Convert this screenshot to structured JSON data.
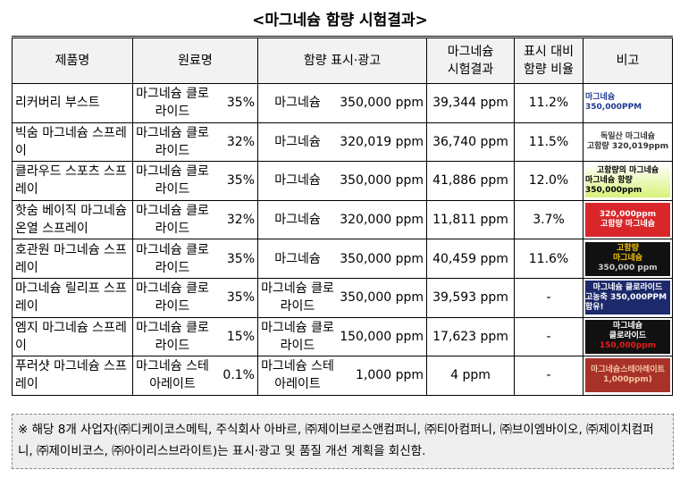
{
  "title": "<마그네슘 함량 시험결과>",
  "table": {
    "headers": [
      "제품명",
      "원료명",
      "함량 표시·광고",
      "마그네슘\n시험결과",
      "표시 대비\n함량 비율",
      "비고"
    ],
    "rows": [
      {
        "product": "리커버리 부스트",
        "ingredient": "마그네슘 클로라이드",
        "ingredient_pct": "35%",
        "claim_ingredient": "마그네슘",
        "claim_amount": "350,000 ppm",
        "test_result": "39,344 ppm",
        "ratio": "11.2%",
        "note": [
          "마그네슘 350,000PPM"
        ]
      },
      {
        "product": "빅숨 마그네슘 스프레이",
        "ingredient": "마그네슘 클로라이드",
        "ingredient_pct": "32%",
        "claim_ingredient": "마그네슘",
        "claim_amount": "320,019 ppm",
        "test_result": "36,740 ppm",
        "ratio": "11.5%",
        "note": [
          "독일산 마그네슘",
          "고함량 320,019ppm"
        ]
      },
      {
        "product": "클라우드 스포츠 스프레이",
        "ingredient": "마그네슘 클로라이드",
        "ingredient_pct": "35%",
        "claim_ingredient": "마그네슘",
        "claim_amount": "350,000 ppm",
        "test_result": "41,886 ppm",
        "ratio": "12.0%",
        "note": [
          "고함량의 마그네슘",
          "마그네슘 함량 350,000ppm"
        ]
      },
      {
        "product": "핫숨 베이직 마그네슘 온열 스프레이",
        "ingredient": "마그네슘 클로라이드",
        "ingredient_pct": "32%",
        "claim_ingredient": "마그네슘",
        "claim_amount": "320,000 ppm",
        "test_result": "11,811 ppm",
        "ratio": "3.7%",
        "note": [
          "320,000ppm",
          "고함량 마그네슘"
        ]
      },
      {
        "product": "호관원 마그네슘 스프레이",
        "ingredient": "마그네슘 클로라이드",
        "ingredient_pct": "35%",
        "claim_ingredient": "마그네슘",
        "claim_amount": "350,000 ppm",
        "test_result": "40,459 ppm",
        "ratio": "11.6%",
        "note": [
          "고함량",
          "마그네슘",
          "350,000 ppm"
        ]
      },
      {
        "product": "마그네슘 릴리프 스프레이",
        "ingredient": "마그네슘 클로라이드",
        "ingredient_pct": "35%",
        "claim_ingredient": "마그네슘 클로라이드",
        "claim_amount": "350,000 ppm",
        "test_result": "39,593 ppm",
        "ratio": "-",
        "note": [
          "마그네슘 클로라이드",
          "고농축 350,000PPM 함유!"
        ]
      },
      {
        "product": "엠지 마그네슘 스프레이",
        "ingredient": "마그네슘 클로라이드",
        "ingredient_pct": "15%",
        "claim_ingredient": "마그네슘 클로라이드",
        "claim_amount": "150,000 ppm",
        "test_result": "17,623 ppm",
        "ratio": "-",
        "note": [
          "마그네슘",
          "클로라이드",
          "150,000ppm"
        ]
      },
      {
        "product": "푸러샷 마그네슘 스프레이",
        "ingredient": "마그네슘 스테아레이트",
        "ingredient_pct": "0.1%",
        "claim_ingredient": "마그네슘 스테아레이트",
        "claim_amount": "1,000 ppm",
        "test_result": "4 ppm",
        "ratio": "-",
        "note": [
          "마그네슘스테아레이트",
          "1,000ppm)"
        ]
      }
    ]
  },
  "footnote": "※ 해당 8개 사업자(㈜디케이코스메틱, 주식회사 아바르, ㈜제이브로스앤컴퍼니, ㈜티아컴퍼니, ㈜브이엠바이오, ㈜제이치컴퍼니, ㈜제이비코스, ㈜아이리스브라이트)는 표시·광고 및 품질 개선 계획을 회신함."
}
